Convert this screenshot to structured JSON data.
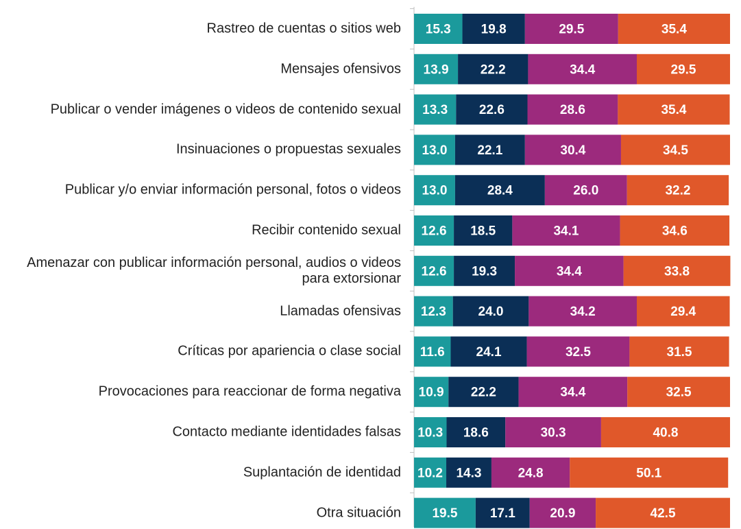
{
  "chart_data": {
    "type": "stacked-bar-horizontal",
    "categories": [
      "Rastreo de cuentas o sitios web",
      "Mensajes ofensivos",
      "Publicar o vender imágenes o videos de contenido sexual",
      "Insinuaciones o propuestas sexuales",
      "Publicar y/o enviar información personal, fotos o videos",
      "Recibir contenido sexual",
      "Amenazar con publicar información personal, audios o videos para extorsionar",
      "Llamadas ofensivas",
      "Críticas por apariencia o clase social",
      "Provocaciones para reaccionar de forma negativa",
      "Contacto mediante identidades falsas",
      "Suplantación de identidad",
      "Otra situación"
    ],
    "xlim": [
      0,
      100
    ],
    "series": [
      {
        "color": "#1b9a9c",
        "values": [
          15.3,
          13.9,
          13.3,
          13.0,
          13.0,
          12.6,
          12.6,
          12.3,
          11.6,
          10.9,
          10.3,
          10.2,
          19.5
        ],
        "value_labels": [
          "15.3",
          "13.9",
          "13.3",
          "13.0",
          "13.0",
          "12.6",
          "12.6",
          "12.3",
          "11.6",
          "10.9",
          "10.3",
          "10.2",
          "19.5"
        ]
      },
      {
        "color": "#0b2f56",
        "values": [
          19.8,
          22.2,
          22.6,
          22.1,
          28.4,
          18.5,
          19.3,
          24.0,
          24.1,
          22.2,
          18.6,
          14.3,
          17.1
        ],
        "value_labels": [
          "19.8",
          "22.2",
          "22.6",
          "22.1",
          "28.4",
          "18.5",
          "19.3",
          "24.0",
          "24.1",
          "22.2",
          "18.6",
          "14.3",
          "17.1"
        ]
      },
      {
        "color": "#9c2a7d",
        "values": [
          29.5,
          34.4,
          28.6,
          30.4,
          26.0,
          34.1,
          34.4,
          34.2,
          32.5,
          34.4,
          30.3,
          24.8,
          20.9
        ],
        "value_labels": [
          "29.5",
          "34.4",
          "28.6",
          "30.4",
          "26.0",
          "34.1",
          "34.4",
          "34.2",
          "32.5",
          "34.4",
          "30.3",
          "24.8",
          "20.9"
        ]
      },
      {
        "color": "#e0582a",
        "values": [
          35.4,
          29.5,
          35.4,
          34.5,
          32.2,
          34.6,
          33.8,
          29.4,
          31.5,
          32.5,
          40.8,
          50.1,
          42.5
        ],
        "value_labels": [
          "35.4",
          "29.5",
          "35.4",
          "34.5",
          "32.2",
          "34.6",
          "33.8",
          "29.4",
          "31.5",
          "32.5",
          "40.8",
          "50.1",
          "42.5"
        ]
      }
    ]
  }
}
